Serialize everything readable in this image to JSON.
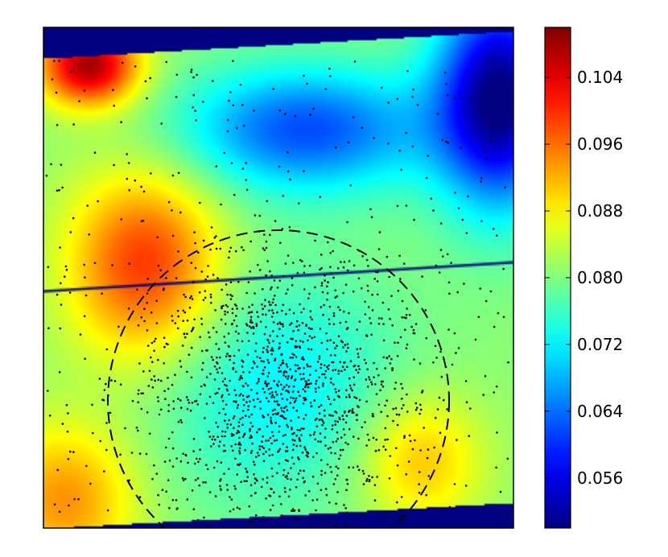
{
  "chart_data": {
    "type": "heatmap",
    "title": "",
    "xlabel": "",
    "ylabel": "",
    "colormap": "jet",
    "colorbar": {
      "range": [
        0.05,
        0.11
      ],
      "ticks": [
        0.056,
        0.064,
        0.072,
        0.08,
        0.088,
        0.096,
        0.104
      ],
      "tick_labels": [
        "0.056",
        "0.064",
        "0.072",
        "0.080",
        "0.088",
        "0.096",
        "0.104"
      ]
    },
    "field_features": [
      {
        "kind": "hot",
        "value": 0.108,
        "location": "upper-left corner"
      },
      {
        "kind": "hot",
        "value": 0.1,
        "location": "left, middle band"
      },
      {
        "kind": "warm",
        "value": 0.094,
        "location": "lower-left corner"
      },
      {
        "kind": "warm",
        "value": 0.092,
        "location": "lower right of circle"
      },
      {
        "kind": "cool",
        "value": 0.072,
        "location": "circle center"
      },
      {
        "kind": "cool",
        "value": 0.062,
        "location": "upper middle"
      },
      {
        "kind": "cold",
        "value": 0.05,
        "location": "right edge, upper"
      }
    ],
    "overlays": [
      {
        "kind": "scatter",
        "color": "#000000",
        "description": "stars, concentrated at circle center"
      },
      {
        "kind": "dashed-circle",
        "color": "#000000"
      },
      {
        "kind": "chip-gap-line",
        "color": "#00007f"
      }
    ],
    "grid": false,
    "axes_ticks_visible": false
  },
  "colors": {
    "jet_low": "#00007f",
    "jet_high": "#7f0000",
    "points": "#000000"
  }
}
